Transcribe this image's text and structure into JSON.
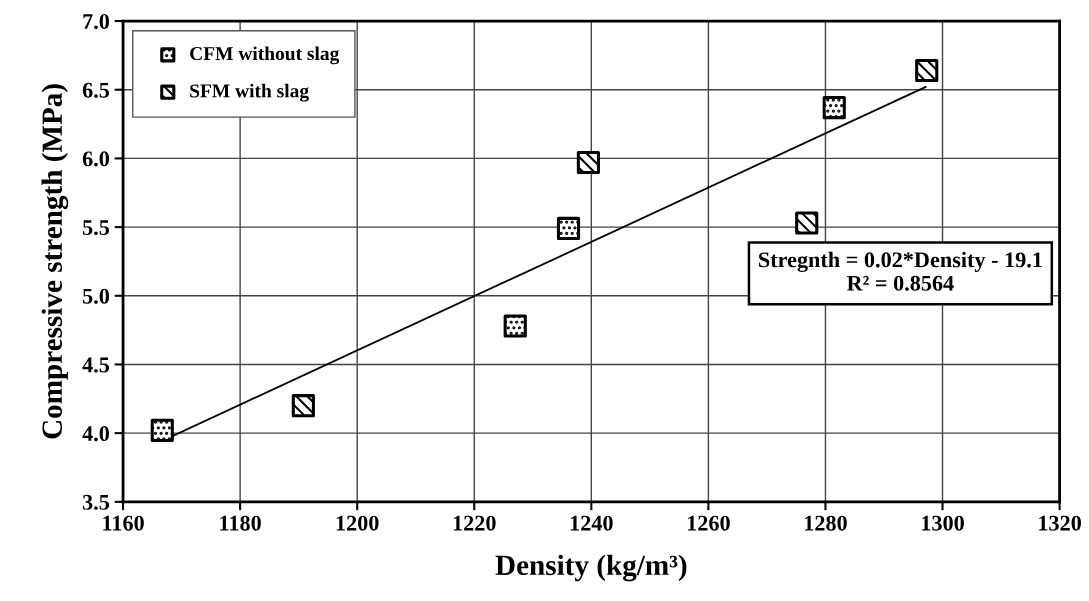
{
  "chart_data": {
    "type": "scatter",
    "xlabel": "Density (kg/m³)",
    "ylabel": "Compressive strength (MPa)",
    "xlim": [
      1160,
      1320
    ],
    "xticks": [
      1160,
      1180,
      1200,
      1220,
      1240,
      1260,
      1280,
      1300,
      1320
    ],
    "ylim": [
      3.5,
      7.0
    ],
    "yticks": [
      {
        "value": 3.5,
        "label": "3.5"
      },
      {
        "value": 4.0,
        "label": "4.0"
      },
      {
        "value": 4.5,
        "label": "4.5"
      },
      {
        "value": 5.0,
        "label": "5.0"
      },
      {
        "value": 5.5,
        "label": "5.5"
      },
      {
        "value": 6.0,
        "label": "6.0"
      },
      {
        "value": 6.5,
        "label": "6.5"
      },
      {
        "value": 7.0,
        "label": "7.0"
      }
    ],
    "grid": true,
    "legend": "top left",
    "marker": "square",
    "series": [
      {
        "name": "CFM without slag",
        "color": "#000000",
        "x": [
          1166.7,
          1227.0,
          1236.1,
          1281.5
        ],
        "values": [
          4.02,
          4.78,
          5.49,
          6.37
        ]
      },
      {
        "name": "SFM with slag",
        "color": "#000000",
        "x": [
          1190.8,
          1239.5,
          1276.8,
          1297.3
        ],
        "values": [
          4.2,
          5.97,
          5.53,
          6.64
        ]
      },
      {
        "type": "line",
        "color": "#000000",
        "marker": "none",
        "x": [
          1168,
          1297.1
        ],
        "values": [
          3.97,
          6.52
        ]
      }
    ],
    "annotations": [
      "Stregnth = 0.02*Density - 19.1\nR² = 0.8564"
    ]
  }
}
